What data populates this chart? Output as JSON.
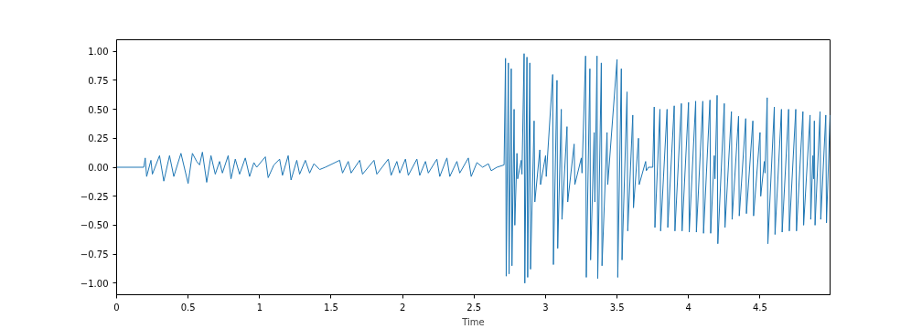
{
  "chart_data": {
    "type": "line",
    "xlabel": "Time",
    "x": [
      0,
      0.19,
      0.2,
      0.21,
      0.24,
      0.25,
      0.3,
      0.33,
      0.37,
      0.4,
      0.45,
      0.5,
      0.53,
      0.56,
      0.58,
      0.6,
      0.63,
      0.66,
      0.69,
      0.72,
      0.74,
      0.78,
      0.8,
      0.83,
      0.86,
      0.9,
      0.93,
      0.96,
      0.98,
      1.04,
      1.06,
      1.1,
      1.14,
      1.16,
      1.2,
      1.22,
      1.26,
      1.28,
      1.32,
      1.35,
      1.38,
      1.42,
      1.46,
      1.56,
      1.58,
      1.62,
      1.64,
      1.7,
      1.72,
      1.8,
      1.82,
      1.9,
      1.92,
      1.96,
      1.98,
      2.02,
      2.04,
      2.1,
      2.12,
      2.16,
      2.18,
      2.24,
      2.26,
      2.31,
      2.33,
      2.38,
      2.4,
      2.46,
      2.48,
      2.52,
      2.56,
      2.6,
      2.62,
      2.66,
      2.71,
      2.72,
      2.725,
      2.74,
      2.745,
      2.76,
      2.765,
      2.78,
      2.785,
      2.8,
      2.805,
      2.83,
      2.835,
      2.85,
      2.855,
      2.87,
      2.875,
      2.89,
      2.895,
      2.92,
      2.925,
      2.96,
      2.965,
      3.0,
      3.005,
      3.05,
      3.055,
      3.08,
      3.085,
      3.11,
      3.115,
      3.15,
      3.155,
      3.2,
      3.205,
      3.25,
      3.255,
      3.28,
      3.285,
      3.31,
      3.315,
      3.34,
      3.345,
      3.36,
      3.365,
      3.39,
      3.395,
      3.43,
      3.435,
      3.5,
      3.505,
      3.53,
      3.535,
      3.57,
      3.575,
      3.61,
      3.615,
      3.65,
      3.655,
      3.7,
      3.705,
      3.72,
      3.75,
      3.76,
      3.765,
      3.8,
      3.805,
      3.85,
      3.855,
      3.9,
      3.905,
      3.95,
      3.955,
      4.0,
      4.005,
      4.05,
      4.055,
      4.1,
      4.105,
      4.15,
      4.155,
      4.18,
      4.185,
      4.2,
      4.205,
      4.25,
      4.255,
      4.3,
      4.305,
      4.35,
      4.355,
      4.4,
      4.405,
      4.45,
      4.455,
      4.5,
      4.505,
      4.53,
      4.535,
      4.55,
      4.555,
      4.6,
      4.605,
      4.65,
      4.655,
      4.7,
      4.705,
      4.75,
      4.755,
      4.8,
      4.805,
      4.85,
      4.855,
      4.87,
      4.875,
      4.88,
      4.885,
      4.92,
      4.925,
      4.96,
      4.965,
      4.99
    ],
    "series": [
      {
        "color": "#1f77b4",
        "values": [
          0,
          0,
          0.08,
          -0.08,
          0.06,
          -0.06,
          0.1,
          -0.12,
          0.1,
          -0.08,
          0.12,
          -0.14,
          0.12,
          0.05,
          0.02,
          0.13,
          -0.13,
          0.1,
          -0.06,
          0.05,
          -0.05,
          0.1,
          -0.1,
          0.07,
          -0.06,
          0.08,
          -0.08,
          0.04,
          0,
          0.09,
          -0.09,
          0.02,
          0.07,
          -0.07,
          0.1,
          -0.11,
          0.06,
          -0.06,
          0.06,
          -0.05,
          0.03,
          -0.02,
          0,
          0.06,
          -0.05,
          0.05,
          -0.05,
          0.06,
          -0.06,
          0.06,
          -0.06,
          0.07,
          -0.07,
          0.05,
          -0.05,
          0.07,
          -0.07,
          0.07,
          -0.07,
          0.05,
          -0.05,
          0.07,
          -0.08,
          0.08,
          -0.08,
          0.05,
          -0.05,
          0.08,
          -0.08,
          0.04,
          0,
          0.03,
          -0.03,
          0,
          0.02,
          0.94,
          -0.94,
          0.9,
          -0.92,
          0.85,
          -0.85,
          0.5,
          -0.5,
          0.12,
          -0.1,
          0.06,
          -0.06,
          0.98,
          -1.0,
          0.95,
          -0.95,
          0.9,
          -0.88,
          0.4,
          -0.3,
          0.15,
          -0.15,
          0.1,
          -0.08,
          0.8,
          -0.84,
          0.75,
          -0.7,
          0.5,
          -0.45,
          0.35,
          -0.3,
          0.2,
          -0.15,
          0.08,
          -0.05,
          0.96,
          -0.95,
          0.85,
          -0.8,
          0.3,
          -0.3,
          0.96,
          -0.96,
          0.9,
          -0.85,
          0.3,
          -0.15,
          0.93,
          -0.95,
          0.85,
          -0.8,
          0.65,
          -0.55,
          0.45,
          -0.35,
          0.25,
          -0.15,
          0.05,
          -0.03,
          0,
          0,
          0.52,
          -0.52,
          0.5,
          -0.55,
          0.5,
          -0.52,
          0.53,
          -0.55,
          0.55,
          -0.55,
          0.56,
          -0.56,
          0.57,
          -0.56,
          0.57,
          -0.57,
          0.58,
          -0.57,
          0.1,
          -0.1,
          0.62,
          -0.66,
          0.55,
          -0.52,
          0.48,
          -0.45,
          0.44,
          -0.42,
          0.42,
          -0.4,
          0.4,
          -0.42,
          0.3,
          -0.25,
          0.05,
          -0.05,
          0.6,
          -0.66,
          0.52,
          -0.58,
          0.5,
          -0.56,
          0.5,
          -0.55,
          0.5,
          -0.55,
          0.48,
          -0.5,
          0.45,
          -0.45,
          0.1,
          -0.1,
          0.4,
          -0.5,
          0.48,
          -0.45,
          0.45,
          -0.48,
          0.45
        ]
      }
    ],
    "xlim": [
      0,
      4.99
    ],
    "ylim": [
      -1.1,
      1.1
    ],
    "xticks": [
      0,
      {
        "value": 0.5,
        "label": "0.5"
      },
      1,
      {
        "value": 1.5,
        "label": "1.5"
      },
      2,
      {
        "value": 2.5,
        "label": "2.5"
      },
      3,
      {
        "value": 3.5,
        "label": "3.5"
      },
      4,
      {
        "value": 4.5,
        "label": "4.5"
      }
    ],
    "yticks": [
      {
        "value": -1,
        "label": "−1.00"
      },
      {
        "value": -0.75,
        "label": "−0.75"
      },
      {
        "value": -0.5,
        "label": "−0.50"
      },
      {
        "value": -0.25,
        "label": "−0.25"
      },
      {
        "value": 0,
        "label": "0.00"
      },
      {
        "value": 0.25,
        "label": "0.25"
      },
      {
        "value": 0.5,
        "label": "0.50"
      },
      {
        "value": 0.75,
        "label": "0.75"
      },
      {
        "value": 1,
        "label": "1.00"
      }
    ]
  }
}
